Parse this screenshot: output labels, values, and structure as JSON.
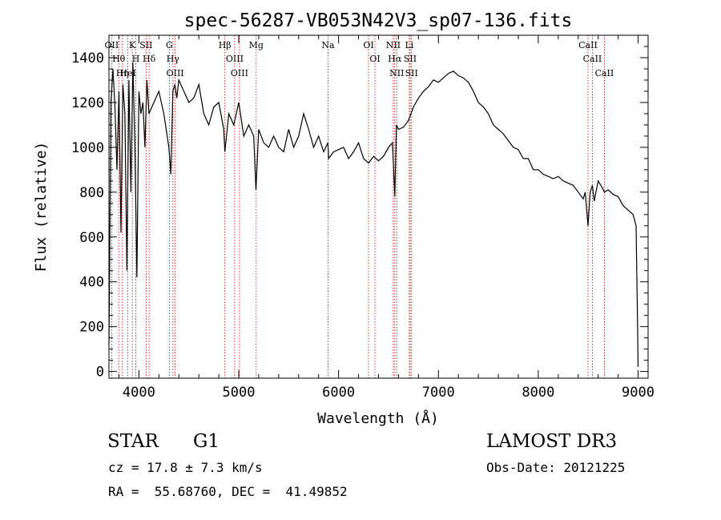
{
  "chart_data": {
    "type": "line",
    "title": "spec-56287-VB053N42V3_sp07-136.fits",
    "xlabel": "Wavelength (Å)",
    "ylabel": "Flux (relative)",
    "xlim": [
      3700,
      9100
    ],
    "ylim": [
      -30,
      1500
    ],
    "xticks": [
      4000,
      5000,
      6000,
      7000,
      8000,
      9000
    ],
    "xticklabels": [
      "4000",
      "5000",
      "6000",
      "7000",
      "8000",
      "9000"
    ],
    "yticks": [
      0,
      200,
      400,
      600,
      800,
      1000,
      1200,
      1400
    ],
    "yticklabels": [
      "0",
      "200",
      "400",
      "600",
      "800",
      "1000",
      "1200",
      "1400"
    ],
    "grid": false,
    "line_color": "#000000",
    "marker_color": "#cc0000",
    "series": [
      {
        "x": [
          3700,
          3720,
          3740,
          3760,
          3780,
          3800,
          3820,
          3840,
          3860,
          3880,
          3900,
          3920,
          3940,
          3960,
          3980,
          4000,
          4020,
          4040,
          4060,
          4080,
          4100,
          4150,
          4200,
          4250,
          4300,
          4320,
          4340,
          4360,
          4380,
          4400,
          4450,
          4500,
          4550,
          4600,
          4650,
          4700,
          4750,
          4800,
          4850,
          4861,
          4900,
          4950,
          5000,
          5050,
          5100,
          5150,
          5172,
          5200,
          5250,
          5300,
          5350,
          5400,
          5450,
          5500,
          5550,
          5600,
          5650,
          5700,
          5750,
          5800,
          5850,
          5893,
          5900,
          5950,
          6000,
          6050,
          6100,
          6150,
          6200,
          6250,
          6300,
          6350,
          6400,
          6450,
          6500,
          6540,
          6563,
          6580,
          6600,
          6650,
          6700,
          6750,
          6800,
          6850,
          6900,
          6950,
          7000,
          7050,
          7100,
          7150,
          7200,
          7250,
          7300,
          7350,
          7400,
          7450,
          7500,
          7550,
          7600,
          7650,
          7700,
          7750,
          7800,
          7850,
          7900,
          7950,
          8000,
          8050,
          8100,
          8150,
          8200,
          8250,
          8300,
          8350,
          8400,
          8450,
          8470,
          8498,
          8520,
          8542,
          8560,
          8600,
          8640,
          8662,
          8700,
          8750,
          8800,
          8850,
          8900,
          8950,
          8980,
          8995,
          9000
        ],
        "y": [
          120,
          1200,
          1350,
          1180,
          900,
          1250,
          620,
          1280,
          1150,
          450,
          1300,
          800,
          1380,
          1000,
          420,
          1250,
          1150,
          1200,
          1000,
          1300,
          1150,
          1200,
          1250,
          1150,
          1000,
          880,
          1250,
          1280,
          1220,
          1300,
          1250,
          1200,
          1220,
          1280,
          1150,
          1100,
          1180,
          1200,
          1080,
          980,
          1150,
          1100,
          1200,
          1050,
          1100,
          1050,
          810,
          1080,
          1020,
          1000,
          1050,
          1000,
          980,
          1080,
          1000,
          1050,
          1150,
          1080,
          1000,
          1050,
          980,
          1020,
          950,
          980,
          990,
          1000,
          950,
          980,
          1020,
          950,
          930,
          960,
          940,
          960,
          1000,
          1020,
          780,
          1100,
          1080,
          1090,
          1120,
          1180,
          1220,
          1250,
          1270,
          1300,
          1290,
          1310,
          1330,
          1340,
          1320,
          1310,
          1290,
          1250,
          1200,
          1180,
          1150,
          1100,
          1080,
          1060,
          1030,
          1000,
          990,
          950,
          950,
          900,
          900,
          880,
          870,
          860,
          870,
          850,
          840,
          830,
          800,
          770,
          800,
          650,
          800,
          830,
          760,
          850,
          820,
          800,
          810,
          790,
          780,
          740,
          720,
          700,
          650,
          200,
          20
        ]
      }
    ],
    "annotation_lines": [
      {
        "label": "Hθ",
        "x": 3798
      },
      {
        "label": "OII",
        "x": 3727
      },
      {
        "label": "Hη",
        "x": 3835
      },
      {
        "label": "HeI",
        "x": 3889
      },
      {
        "label": "K",
        "x": 3934
      },
      {
        "label": "H",
        "x": 3969
      },
      {
        "label": "SII",
        "x": 4072
      },
      {
        "label": "Hδ",
        "x": 4102
      },
      {
        "label": "G",
        "x": 4305
      },
      {
        "label": "OIII",
        "x": 4363
      },
      {
        "label": "Hγ",
        "x": 4341
      },
      {
        "label": "Hβ",
        "x": 4861
      },
      {
        "label": "OIII",
        "x": 4959
      },
      {
        "label": "OIII",
        "x": 5007
      },
      {
        "label": "Mg",
        "x": 5175
      },
      {
        "label": "Na",
        "x": 5894
      },
      {
        "label": "OI",
        "x": 6300
      },
      {
        "label": "OI",
        "x": 6364
      },
      {
        "label": "NII",
        "x": 6548
      },
      {
        "label": "Hα",
        "x": 6563
      },
      {
        "label": "NII",
        "x": 6583
      },
      {
        "label": "SII",
        "x": 6717
      },
      {
        "label": "SII",
        "x": 6731
      },
      {
        "label": "Li",
        "x": 6708
      },
      {
        "label": "CaII",
        "x": 8498
      },
      {
        "label": "CaII",
        "x": 8542
      },
      {
        "label": "CaII",
        "x": 8662
      }
    ]
  },
  "info": {
    "object_class": "STAR",
    "subclass": "G1",
    "survey": "LAMOST DR3",
    "cz": "cz = 17.8 ± 7.3 km/s",
    "obs_date": "Obs-Date: 20121225",
    "radec": "RA =  55.68760, DEC =  41.49852"
  }
}
